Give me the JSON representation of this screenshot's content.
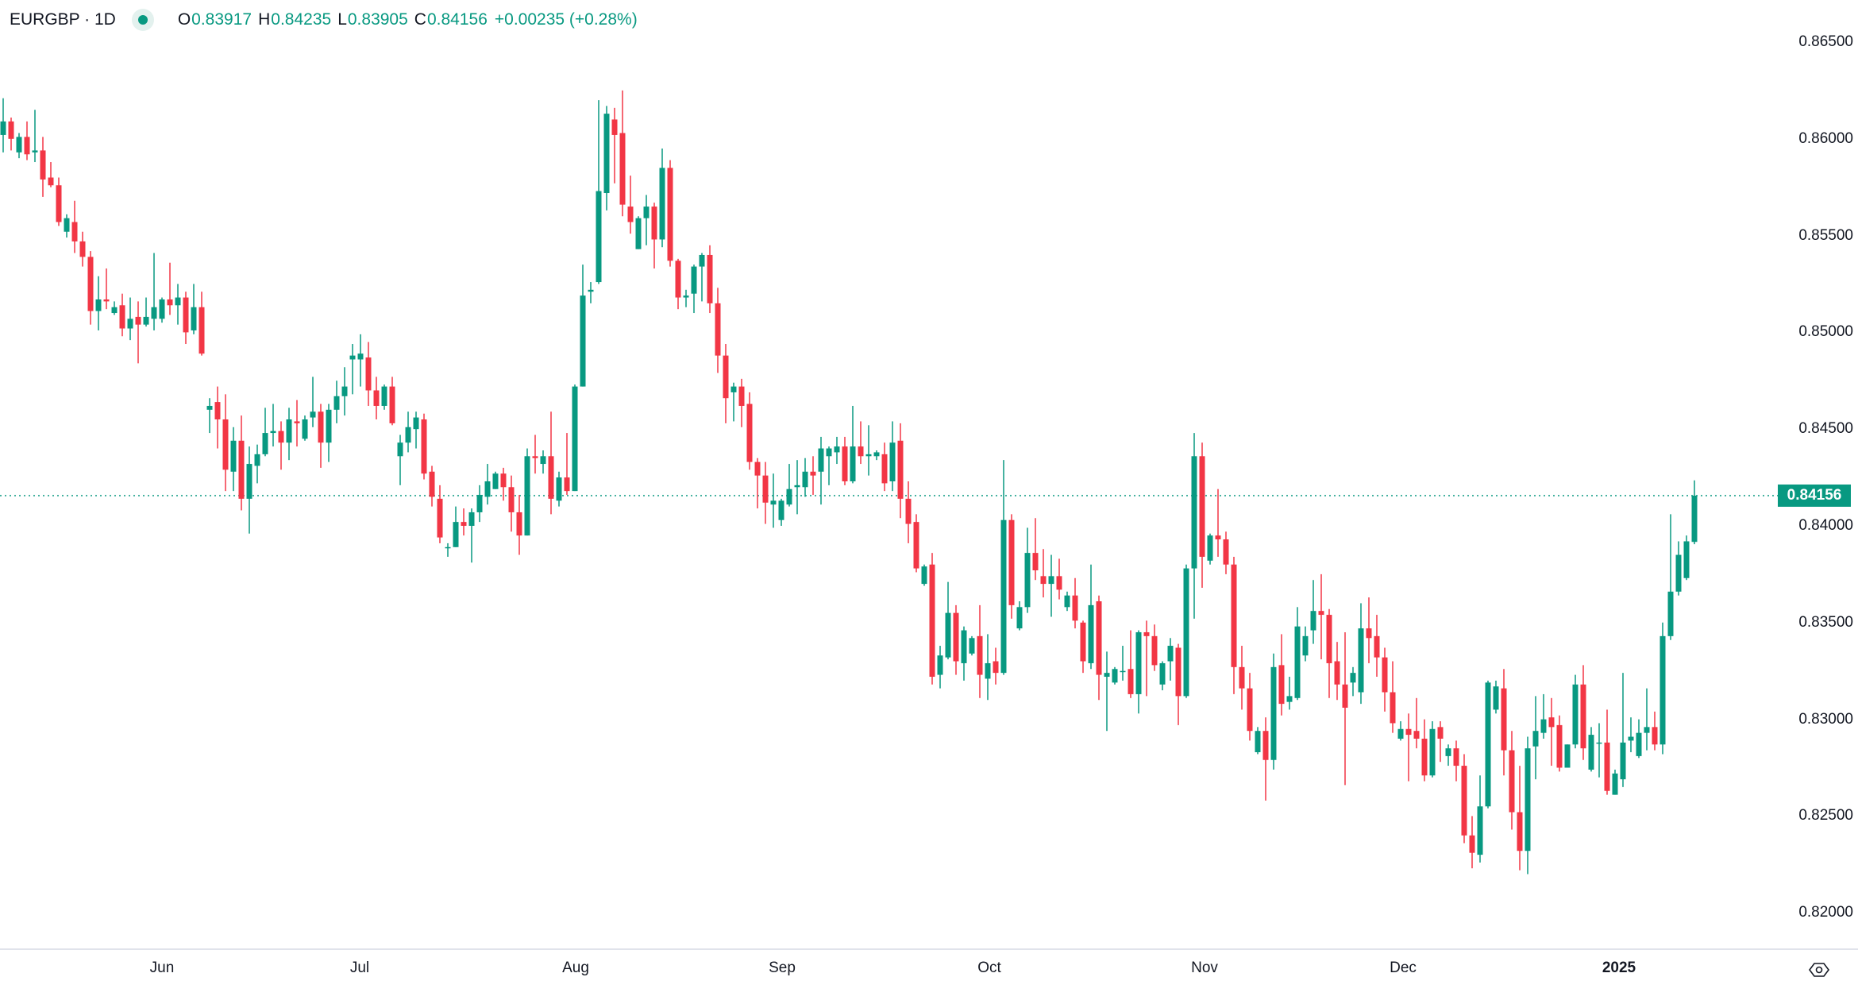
{
  "header": {
    "symbol": "EURGBP · 1D",
    "status_color": "#089981",
    "open_key": "O",
    "open": "0.83917",
    "high_key": "H",
    "high": "0.84235",
    "low_key": "L",
    "low": "0.83905",
    "close_key": "C",
    "close": "0.84156",
    "change": "+0.00235 (+0.28%)"
  },
  "colors": {
    "up": "#089981",
    "down": "#f23645",
    "text": "#131722",
    "grid": "#e0e3eb"
  },
  "icons": {
    "status": "market-status-dot-icon",
    "settings": "settings-icon"
  },
  "chart_data": {
    "type": "candlestick",
    "title": "EURGBP · 1D",
    "interval": "1D",
    "ylim": [
      0.8178,
      0.8672
    ],
    "y_ticks": [
      "0.86500",
      "0.86000",
      "0.85500",
      "0.85000",
      "0.84500",
      "0.84000",
      "0.83500",
      "0.83000",
      "0.82500",
      "0.82000"
    ],
    "y_tick_values": [
      0.865,
      0.86,
      0.855,
      0.85,
      0.845,
      0.84,
      0.835,
      0.83,
      0.825,
      0.82
    ],
    "x_ticks": [
      "Jun",
      "Jul",
      "Aug",
      "Sep",
      "Oct",
      "Nov",
      "Dec",
      "2025"
    ],
    "last_price": 0.84156,
    "last_price_label": "0.84156",
    "grid": false,
    "ohlc": [
      [
        0.8602,
        0.8621,
        0.8593,
        0.8609
      ],
      [
        0.8609,
        0.8611,
        0.8594,
        0.86
      ],
      [
        0.8593,
        0.8603,
        0.859,
        0.8601
      ],
      [
        0.8601,
        0.8609,
        0.8589,
        0.8592
      ],
      [
        0.8593,
        0.8615,
        0.8588,
        0.8594
      ],
      [
        0.8594,
        0.8601,
        0.857,
        0.8579
      ],
      [
        0.858,
        0.8588,
        0.8575,
        0.8576
      ],
      [
        0.8576,
        0.858,
        0.8555,
        0.8557
      ],
      [
        0.8552,
        0.8561,
        0.8549,
        0.8559
      ],
      [
        0.8557,
        0.8568,
        0.8541,
        0.8547
      ],
      [
        0.8547,
        0.8552,
        0.8534,
        0.8539
      ],
      [
        0.8539,
        0.8542,
        0.8504,
        0.8511
      ],
      [
        0.8511,
        0.8529,
        0.8501,
        0.8517
      ],
      [
        0.8517,
        0.8533,
        0.8512,
        0.8516
      ],
      [
        0.851,
        0.8516,
        0.8509,
        0.8513
      ],
      [
        0.8514,
        0.852,
        0.8498,
        0.8502
      ],
      [
        0.8502,
        0.8518,
        0.8496,
        0.8507
      ],
      [
        0.8508,
        0.8516,
        0.8484,
        0.8504
      ],
      [
        0.8504,
        0.8518,
        0.8503,
        0.8508
      ],
      [
        0.8507,
        0.8541,
        0.8501,
        0.8513
      ],
      [
        0.8507,
        0.8518,
        0.8505,
        0.8517
      ],
      [
        0.8517,
        0.8536,
        0.8509,
        0.8514
      ],
      [
        0.8514,
        0.8525,
        0.8504,
        0.8518
      ],
      [
        0.8518,
        0.8521,
        0.8494,
        0.85
      ],
      [
        0.8501,
        0.8525,
        0.8499,
        0.8513
      ],
      [
        0.8513,
        0.8521,
        0.8488,
        0.8489
      ],
      [
        0.846,
        0.8466,
        0.8448,
        0.8462
      ],
      [
        0.8464,
        0.8472,
        0.844,
        0.8455
      ],
      [
        0.8455,
        0.8468,
        0.8418,
        0.8429
      ],
      [
        0.8428,
        0.8451,
        0.8418,
        0.8444
      ],
      [
        0.8444,
        0.8457,
        0.8408,
        0.8414
      ],
      [
        0.8414,
        0.8441,
        0.8396,
        0.8432
      ],
      [
        0.8431,
        0.8442,
        0.8422,
        0.8437
      ],
      [
        0.8437,
        0.8461,
        0.8436,
        0.8448
      ],
      [
        0.8448,
        0.8463,
        0.8441,
        0.8449
      ],
      [
        0.8449,
        0.8454,
        0.8429,
        0.8443
      ],
      [
        0.8443,
        0.8461,
        0.8434,
        0.8455
      ],
      [
        0.8454,
        0.8465,
        0.8441,
        0.8453
      ],
      [
        0.8445,
        0.8457,
        0.8444,
        0.8455
      ],
      [
        0.8456,
        0.8477,
        0.8451,
        0.8459
      ],
      [
        0.8459,
        0.8463,
        0.843,
        0.8443
      ],
      [
        0.8443,
        0.8463,
        0.8433,
        0.846
      ],
      [
        0.846,
        0.8475,
        0.8453,
        0.8467
      ],
      [
        0.8467,
        0.8482,
        0.8457,
        0.8472
      ],
      [
        0.8486,
        0.8494,
        0.8468,
        0.8488
      ],
      [
        0.8486,
        0.8499,
        0.8472,
        0.8489
      ],
      [
        0.8487,
        0.8495,
        0.8462,
        0.847
      ],
      [
        0.847,
        0.8477,
        0.8455,
        0.8462
      ],
      [
        0.8462,
        0.8473,
        0.846,
        0.8472
      ],
      [
        0.8472,
        0.8477,
        0.8452,
        0.8453
      ],
      [
        0.8436,
        0.8447,
        0.8421,
        0.8443
      ],
      [
        0.8443,
        0.8459,
        0.8438,
        0.8451
      ],
      [
        0.845,
        0.8459,
        0.844,
        0.8456
      ],
      [
        0.8455,
        0.8458,
        0.8424,
        0.8427
      ],
      [
        0.8428,
        0.8431,
        0.841,
        0.8415
      ],
      [
        0.8414,
        0.8421,
        0.8391,
        0.8394
      ],
      [
        0.8389,
        0.8391,
        0.8384,
        0.8389
      ],
      [
        0.8389,
        0.841,
        0.8389,
        0.8402
      ],
      [
        0.8402,
        0.8409,
        0.8395,
        0.84
      ],
      [
        0.84,
        0.8409,
        0.8381,
        0.8407
      ],
      [
        0.8407,
        0.8421,
        0.8402,
        0.8416
      ],
      [
        0.8415,
        0.8432,
        0.8411,
        0.8423
      ],
      [
        0.8419,
        0.8428,
        0.8419,
        0.8427
      ],
      [
        0.8427,
        0.843,
        0.8413,
        0.842
      ],
      [
        0.842,
        0.8426,
        0.8397,
        0.8407
      ],
      [
        0.8407,
        0.8416,
        0.8385,
        0.8395
      ],
      [
        0.8395,
        0.844,
        0.8395,
        0.8436
      ],
      [
        0.8436,
        0.8447,
        0.8427,
        0.8435
      ],
      [
        0.8432,
        0.8439,
        0.8427,
        0.8436
      ],
      [
        0.8436,
        0.8459,
        0.8406,
        0.8414
      ],
      [
        0.8413,
        0.8428,
        0.841,
        0.8425
      ],
      [
        0.8425,
        0.8448,
        0.8416,
        0.8418
      ],
      [
        0.8418,
        0.8473,
        0.8418,
        0.8472
      ],
      [
        0.8472,
        0.8535,
        0.8472,
        0.8519
      ],
      [
        0.8521,
        0.8526,
        0.8515,
        0.8522
      ],
      [
        0.8526,
        0.862,
        0.8525,
        0.8573
      ],
      [
        0.8572,
        0.8617,
        0.8563,
        0.8613
      ],
      [
        0.861,
        0.8616,
        0.8577,
        0.8602
      ],
      [
        0.8603,
        0.8625,
        0.856,
        0.8566
      ],
      [
        0.8565,
        0.8581,
        0.8551,
        0.8557
      ],
      [
        0.8543,
        0.856,
        0.8543,
        0.8559
      ],
      [
        0.8559,
        0.8571,
        0.8545,
        0.8565
      ],
      [
        0.8565,
        0.8567,
        0.8533,
        0.8548
      ],
      [
        0.8548,
        0.8595,
        0.8544,
        0.8585
      ],
      [
        0.8585,
        0.8589,
        0.8534,
        0.8537
      ],
      [
        0.8537,
        0.8538,
        0.8512,
        0.8518
      ],
      [
        0.8518,
        0.8522,
        0.8513,
        0.8519
      ],
      [
        0.852,
        0.8535,
        0.851,
        0.8534
      ],
      [
        0.8534,
        0.8541,
        0.8516,
        0.854
      ],
      [
        0.854,
        0.8545,
        0.851,
        0.8515
      ],
      [
        0.8515,
        0.8523,
        0.8479,
        0.8488
      ],
      [
        0.8488,
        0.8494,
        0.8453,
        0.8466
      ],
      [
        0.8469,
        0.8474,
        0.8454,
        0.8472
      ],
      [
        0.8472,
        0.8476,
        0.8451,
        0.8462
      ],
      [
        0.8463,
        0.8469,
        0.8429,
        0.8433
      ],
      [
        0.8433,
        0.8435,
        0.8409,
        0.8426
      ],
      [
        0.8426,
        0.8433,
        0.8401,
        0.8412
      ],
      [
        0.8411,
        0.8427,
        0.8399,
        0.8413
      ],
      [
        0.8403,
        0.8414,
        0.84,
        0.8413
      ],
      [
        0.8411,
        0.8432,
        0.841,
        0.8419
      ],
      [
        0.842,
        0.8434,
        0.8406,
        0.8421
      ],
      [
        0.842,
        0.8435,
        0.8415,
        0.8428
      ],
      [
        0.8428,
        0.8436,
        0.8416,
        0.8426
      ],
      [
        0.8428,
        0.8446,
        0.8411,
        0.844
      ],
      [
        0.8436,
        0.8441,
        0.8421,
        0.844
      ],
      [
        0.8438,
        0.8446,
        0.8432,
        0.8441
      ],
      [
        0.8441,
        0.8446,
        0.8421,
        0.8423
      ],
      [
        0.8423,
        0.8462,
        0.8422,
        0.8441
      ],
      [
        0.8441,
        0.8454,
        0.8432,
        0.8436
      ],
      [
        0.8436,
        0.8452,
        0.8426,
        0.8437
      ],
      [
        0.8436,
        0.8439,
        0.8434,
        0.8438
      ],
      [
        0.8437,
        0.8443,
        0.8418,
        0.8422
      ],
      [
        0.8423,
        0.8454,
        0.8418,
        0.8443
      ],
      [
        0.8444,
        0.8453,
        0.8404,
        0.8414
      ],
      [
        0.8414,
        0.8423,
        0.8391,
        0.8401
      ],
      [
        0.8402,
        0.8406,
        0.8376,
        0.8378
      ],
      [
        0.837,
        0.838,
        0.8369,
        0.8379
      ],
      [
        0.838,
        0.8386,
        0.8318,
        0.8322
      ],
      [
        0.8323,
        0.8338,
        0.8316,
        0.8333
      ],
      [
        0.8332,
        0.8371,
        0.8331,
        0.8355
      ],
      [
        0.8355,
        0.8359,
        0.8323,
        0.833
      ],
      [
        0.8329,
        0.8348,
        0.832,
        0.8346
      ],
      [
        0.8334,
        0.8343,
        0.8333,
        0.8342
      ],
      [
        0.8343,
        0.8359,
        0.8311,
        0.8323
      ],
      [
        0.8321,
        0.8344,
        0.831,
        0.8329
      ],
      [
        0.833,
        0.8337,
        0.8318,
        0.8324
      ],
      [
        0.8324,
        0.8434,
        0.8323,
        0.8403
      ],
      [
        0.8403,
        0.8406,
        0.8352,
        0.8359
      ],
      [
        0.8347,
        0.8361,
        0.8346,
        0.8358
      ],
      [
        0.8358,
        0.8399,
        0.8355,
        0.8386
      ],
      [
        0.8386,
        0.8404,
        0.8372,
        0.8377
      ],
      [
        0.8374,
        0.8388,
        0.8363,
        0.837
      ],
      [
        0.837,
        0.8385,
        0.8353,
        0.8374
      ],
      [
        0.8374,
        0.8383,
        0.8362,
        0.8367
      ],
      [
        0.8358,
        0.8366,
        0.8356,
        0.8364
      ],
      [
        0.8364,
        0.8373,
        0.8347,
        0.8351
      ],
      [
        0.835,
        0.8351,
        0.8324,
        0.833
      ],
      [
        0.8329,
        0.838,
        0.8326,
        0.8359
      ],
      [
        0.8361,
        0.8364,
        0.831,
        0.8323
      ],
      [
        0.8322,
        0.8335,
        0.8294,
        0.8324
      ],
      [
        0.8319,
        0.8327,
        0.8318,
        0.8326
      ],
      [
        0.8325,
        0.8338,
        0.832,
        0.8325
      ],
      [
        0.8326,
        0.8346,
        0.8311,
        0.8313
      ],
      [
        0.8313,
        0.8346,
        0.8303,
        0.8345
      ],
      [
        0.8345,
        0.8351,
        0.8312,
        0.8343
      ],
      [
        0.8343,
        0.8349,
        0.8325,
        0.8328
      ],
      [
        0.8318,
        0.833,
        0.8315,
        0.8329
      ],
      [
        0.833,
        0.8342,
        0.832,
        0.8338
      ],
      [
        0.8337,
        0.8339,
        0.8297,
        0.8312
      ],
      [
        0.8312,
        0.838,
        0.8311,
        0.8378
      ],
      [
        0.8378,
        0.8448,
        0.8352,
        0.8436
      ],
      [
        0.8436,
        0.8443,
        0.8368,
        0.8384
      ],
      [
        0.8382,
        0.8396,
        0.838,
        0.8395
      ],
      [
        0.8395,
        0.8419,
        0.8384,
        0.8393
      ],
      [
        0.8393,
        0.8397,
        0.8375,
        0.838
      ],
      [
        0.838,
        0.8384,
        0.8313,
        0.8327
      ],
      [
        0.8327,
        0.8338,
        0.8305,
        0.8316
      ],
      [
        0.8316,
        0.8324,
        0.8289,
        0.8294
      ],
      [
        0.8283,
        0.8296,
        0.8282,
        0.8294
      ],
      [
        0.8294,
        0.8301,
        0.8258,
        0.8279
      ],
      [
        0.8279,
        0.8334,
        0.8274,
        0.8327
      ],
      [
        0.8328,
        0.8344,
        0.8302,
        0.8308
      ],
      [
        0.8309,
        0.8322,
        0.8305,
        0.8312
      ],
      [
        0.8311,
        0.8358,
        0.831,
        0.8348
      ],
      [
        0.8333,
        0.8348,
        0.833,
        0.8343
      ],
      [
        0.8346,
        0.8372,
        0.8339,
        0.8356
      ],
      [
        0.8356,
        0.8375,
        0.8331,
        0.8354
      ],
      [
        0.8354,
        0.8357,
        0.8311,
        0.8329
      ],
      [
        0.833,
        0.834,
        0.831,
        0.8318
      ],
      [
        0.8318,
        0.8345,
        0.8266,
        0.8306
      ],
      [
        0.8319,
        0.8327,
        0.8312,
        0.8324
      ],
      [
        0.8314,
        0.836,
        0.8308,
        0.8347
      ],
      [
        0.8347,
        0.8363,
        0.8329,
        0.8342
      ],
      [
        0.8343,
        0.8354,
        0.8322,
        0.8332
      ],
      [
        0.8332,
        0.8337,
        0.8304,
        0.8314
      ],
      [
        0.8314,
        0.833,
        0.8293,
        0.8298
      ],
      [
        0.829,
        0.8299,
        0.8289,
        0.8295
      ],
      [
        0.8295,
        0.8303,
        0.8268,
        0.8292
      ],
      [
        0.8294,
        0.8311,
        0.8285,
        0.829
      ],
      [
        0.829,
        0.83,
        0.8268,
        0.8271
      ],
      [
        0.8271,
        0.8299,
        0.827,
        0.8295
      ],
      [
        0.8296,
        0.8299,
        0.8278,
        0.829
      ],
      [
        0.8281,
        0.8287,
        0.8276,
        0.8285
      ],
      [
        0.8285,
        0.8289,
        0.8268,
        0.8276
      ],
      [
        0.8276,
        0.8282,
        0.8236,
        0.824
      ],
      [
        0.824,
        0.825,
        0.8223,
        0.8231
      ],
      [
        0.823,
        0.8271,
        0.8226,
        0.8255
      ],
      [
        0.8255,
        0.832,
        0.8254,
        0.8319
      ],
      [
        0.8305,
        0.832,
        0.8303,
        0.8317
      ],
      [
        0.8316,
        0.8326,
        0.8271,
        0.8284
      ],
      [
        0.8284,
        0.8294,
        0.8243,
        0.8252
      ],
      [
        0.8252,
        0.8276,
        0.8222,
        0.8232
      ],
      [
        0.8232,
        0.8291,
        0.822,
        0.8285
      ],
      [
        0.8286,
        0.8312,
        0.8269,
        0.8294
      ],
      [
        0.8293,
        0.8313,
        0.829,
        0.83
      ],
      [
        0.8301,
        0.8311,
        0.8276,
        0.8296
      ],
      [
        0.8297,
        0.8302,
        0.8273,
        0.8275
      ],
      [
        0.8275,
        0.8287,
        0.8275,
        0.8287
      ],
      [
        0.8287,
        0.8323,
        0.8285,
        0.8318
      ],
      [
        0.8318,
        0.8328,
        0.8279,
        0.8285
      ],
      [
        0.8274,
        0.8296,
        0.8273,
        0.8292
      ],
      [
        0.8288,
        0.8298,
        0.827,
        0.8288
      ],
      [
        0.8288,
        0.8305,
        0.8261,
        0.8263
      ],
      [
        0.8261,
        0.8274,
        0.8261,
        0.8272
      ],
      [
        0.8269,
        0.8324,
        0.8265,
        0.8288
      ],
      [
        0.8289,
        0.8301,
        0.8283,
        0.8291
      ],
      [
        0.8281,
        0.83,
        0.828,
        0.8293
      ],
      [
        0.8293,
        0.8316,
        0.8284,
        0.8296
      ],
      [
        0.8296,
        0.8304,
        0.8284,
        0.8287
      ],
      [
        0.8287,
        0.835,
        0.8282,
        0.8343
      ],
      [
        0.8343,
        0.8406,
        0.8341,
        0.8366
      ],
      [
        0.8366,
        0.8392,
        0.8364,
        0.8385
      ],
      [
        0.8373,
        0.8395,
        0.8372,
        0.8392
      ],
      [
        0.83917,
        0.84235,
        0.83905,
        0.84156
      ]
    ]
  }
}
